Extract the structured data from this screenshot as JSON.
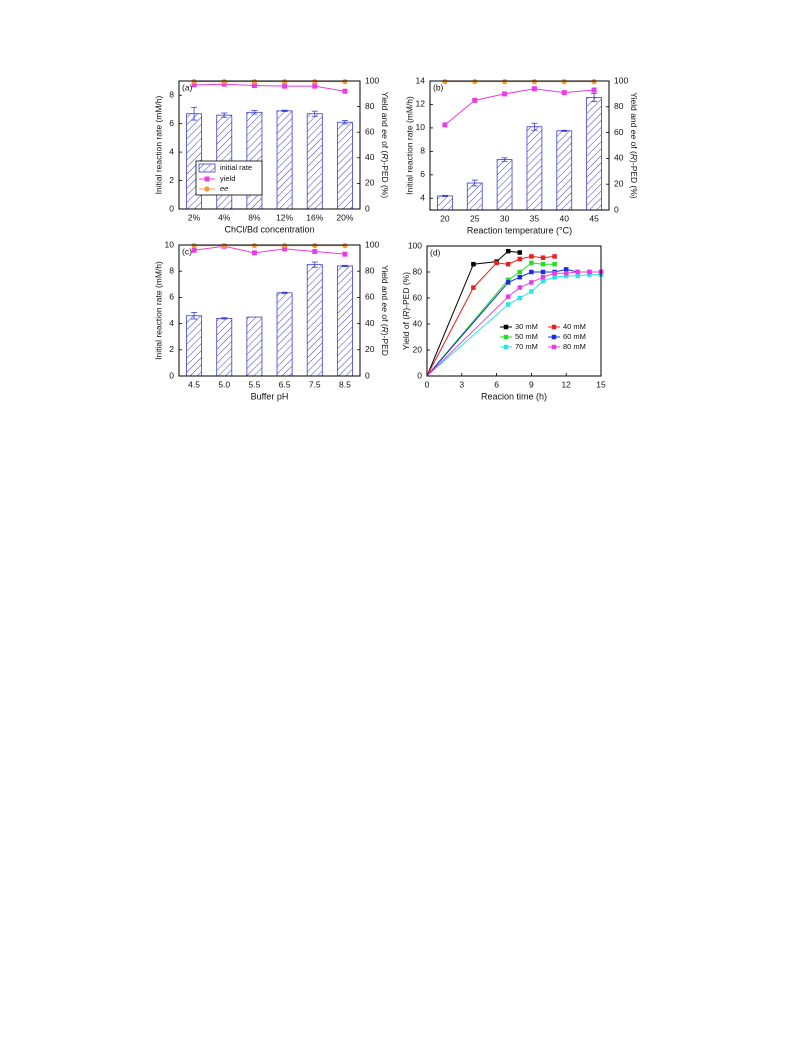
{
  "chart_data": [
    {
      "panel": "(a)",
      "type": "bar",
      "categories": [
        "2%",
        "4%",
        "8%",
        "12%",
        "16%",
        "20%"
      ],
      "xlabel": "ChCl/Bd concentration",
      "ylabel": "Initial reaction rate (mM/h)",
      "ylabel2": "Yield and ee of (R)-PED (%)",
      "ylim": [
        0,
        9
      ],
      "yticks": [
        0,
        2,
        4,
        6,
        8
      ],
      "ylim2": [
        0,
        100
      ],
      "yticks2": [
        0,
        20,
        40,
        60,
        80,
        100
      ],
      "bars": {
        "name": "initial rate",
        "values": [
          6.7,
          6.6,
          6.8,
          6.9,
          6.7,
          6.1
        ],
        "errors": [
          0.45,
          0.15,
          0.12,
          0.05,
          0.18,
          0.12
        ]
      },
      "lines": [
        {
          "name": "yield",
          "values": [
            97,
            97.5,
            96.5,
            96,
            96,
            92
          ],
          "color": "#e83de6"
        },
        {
          "name": "ee",
          "values": [
            99.5,
            99.5,
            99.5,
            99.5,
            99.5,
            99.5
          ],
          "color": "#f39a36"
        }
      ],
      "legend": {
        "placement": "center-left",
        "items": [
          "initial rate",
          "yield",
          "ee"
        ]
      }
    },
    {
      "panel": "(b)",
      "type": "bar",
      "categories": [
        "20",
        "25",
        "30",
        "35",
        "40",
        "45"
      ],
      "xlabel": "Reaction temperature (°C)",
      "ylabel": "Initial reaction rate (mM/h)",
      "ylabel2": "Yield and ee of (R)-PED (%)",
      "ylim": [
        3,
        14
      ],
      "yticks": [
        4,
        6,
        8,
        10,
        12,
        14
      ],
      "ylim2": [
        0,
        100
      ],
      "yticks2": [
        0,
        20,
        40,
        60,
        80,
        100
      ],
      "bars": {
        "name": "initial rate",
        "values": [
          4.2,
          5.3,
          7.3,
          10.1,
          9.75,
          12.6
        ],
        "errors": [
          0.05,
          0.25,
          0.15,
          0.3,
          0.05,
          0.35
        ]
      },
      "lines": [
        {
          "name": "yield",
          "values": [
            66,
            85,
            90,
            94,
            91,
            93
          ],
          "color": "#e83de6"
        },
        {
          "name": "ee",
          "values": [
            99.5,
            99.5,
            99.5,
            99.5,
            99.5,
            99.5
          ],
          "color": "#f39a36"
        }
      ]
    },
    {
      "panel": "(c)",
      "type": "bar",
      "categories": [
        "4.5",
        "5.0",
        "5.5",
        "6.5",
        "7.5",
        "8.5"
      ],
      "xlabel": "Buffer pH",
      "ylabel": "Initial reaction rate (mM/h)",
      "ylabel2": "Yield and ee of (R)-PED",
      "ylim": [
        0,
        10
      ],
      "yticks": [
        0,
        2,
        4,
        6,
        8,
        10
      ],
      "ylim2": [
        0,
        100
      ],
      "yticks2": [
        0,
        20,
        40,
        60,
        80,
        100
      ],
      "bars": {
        "name": "initial rate",
        "values": [
          4.6,
          4.4,
          4.5,
          6.35,
          8.5,
          8.4
        ],
        "errors": [
          0.25,
          0.05,
          0.0,
          0.05,
          0.2,
          0.05
        ]
      },
      "lines": [
        {
          "name": "yield",
          "values": [
            96,
            99,
            94,
            97,
            95,
            93
          ],
          "color": "#e83de6"
        },
        {
          "name": "ee",
          "values": [
            99.5,
            99.5,
            99.5,
            99.5,
            99.5,
            99.5
          ],
          "color": "#f39a36"
        }
      ]
    },
    {
      "panel": "(d)",
      "type": "line",
      "xlabel": "Reacion time (h)",
      "ylabel": "Yield of (R)-PED (%)",
      "xlim": [
        0,
        15
      ],
      "xticks": [
        0,
        3,
        6,
        9,
        12,
        15
      ],
      "ylim": [
        0,
        100
      ],
      "yticks": [
        0,
        20,
        40,
        60,
        80,
        100
      ],
      "series": [
        {
          "name": "30 mM",
          "color": "#000000",
          "x": [
            0,
            4,
            6,
            7,
            8
          ],
          "y": [
            0,
            86,
            88,
            96,
            95
          ]
        },
        {
          "name": "40 mM",
          "color": "#e82020",
          "x": [
            0,
            4,
            6,
            7,
            8,
            9,
            10,
            11
          ],
          "y": [
            0,
            68,
            87,
            86,
            90,
            92,
            91,
            92
          ]
        },
        {
          "name": "50 mM",
          "color": "#22e022",
          "x": [
            0,
            7,
            8,
            9,
            10,
            11
          ],
          "y": [
            0,
            74,
            80,
            87,
            86,
            86
          ]
        },
        {
          "name": "60 mM",
          "color": "#1c2ce6",
          "x": [
            0,
            7,
            8,
            9,
            10,
            11,
            12,
            13,
            14,
            15
          ],
          "y": [
            0,
            72,
            76,
            80,
            80,
            80,
            82,
            80,
            80,
            80
          ]
        },
        {
          "name": "70 mM",
          "color": "#27e6e6",
          "x": [
            0,
            7,
            8,
            9,
            10,
            11,
            12,
            13,
            14,
            15
          ],
          "y": [
            0,
            55,
            60,
            65,
            73,
            76,
            77,
            77,
            78,
            78
          ]
        },
        {
          "name": "80 mM",
          "color": "#e83de6",
          "x": [
            0,
            7,
            8,
            9,
            10,
            11,
            12,
            13,
            14,
            15
          ],
          "y": [
            0,
            61,
            68,
            72,
            76,
            79,
            79,
            80,
            80,
            80
          ]
        }
      ],
      "legend": {
        "placement": "center-right",
        "items": [
          "30 mM",
          "40 mM",
          "50 mM",
          "60 mM",
          "70 mM",
          "80 mM"
        ]
      }
    }
  ],
  "colors": {
    "bar": "#3a3fd0",
    "axis": "#000000"
  }
}
